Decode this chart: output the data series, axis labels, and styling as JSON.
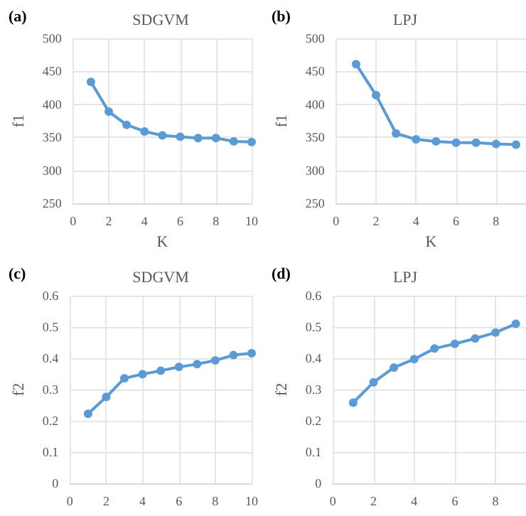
{
  "chart_data": [
    {
      "type": "line",
      "title": "SDGVM",
      "xlabel": "K",
      "ylabel": "f1",
      "annotations": [
        "(a)"
      ],
      "x": [
        1,
        2,
        3,
        4,
        5,
        6,
        7,
        8,
        9,
        10
      ],
      "series": [
        {
          "color": "#5b9bd5",
          "values": [
            434,
            389,
            369,
            359,
            353,
            351,
            349,
            349,
            344,
            343
          ]
        }
      ],
      "xlim": [
        0,
        10
      ],
      "xticks": [
        0,
        2,
        4,
        6,
        8,
        10
      ],
      "ylim": [
        250,
        500
      ],
      "yticks": [
        250,
        300,
        350,
        400,
        450,
        500
      ],
      "grid": true,
      "marker": "circle"
    },
    {
      "type": "line",
      "title": "LPJ",
      "xlabel": "K",
      "ylabel": "f1",
      "annotations": [
        "(b)"
      ],
      "x": [
        1,
        2,
        3,
        4,
        5,
        6,
        7,
        8,
        9
      ],
      "series": [
        {
          "color": "#5b9bd5",
          "values": [
            461,
            414,
            356,
            347,
            344,
            342,
            342,
            340,
            339
          ]
        }
      ],
      "xlim": [
        0,
        9.5
      ],
      "xticks": [
        0,
        2,
        4,
        6,
        8
      ],
      "ylim": [
        250,
        500
      ],
      "yticks": [
        250,
        300,
        350,
        400,
        450,
        500
      ],
      "grid": true,
      "marker": "circle"
    },
    {
      "type": "line",
      "title": "SDGVM",
      "ylabel": "f2",
      "annotations": [
        "(c)"
      ],
      "x": [
        1,
        2,
        3,
        4,
        5,
        6,
        7,
        8,
        9,
        10
      ],
      "series": [
        {
          "color": "#5b9bd5",
          "values": [
            0.222,
            0.276,
            0.336,
            0.349,
            0.36,
            0.372,
            0.381,
            0.393,
            0.41,
            0.416
          ]
        }
      ],
      "xlim": [
        0,
        10
      ],
      "xticks": [
        0,
        2,
        4,
        6,
        8,
        10
      ],
      "ylim": [
        0,
        0.6
      ],
      "yticks": [
        0,
        0.1,
        0.2,
        0.3,
        0.4,
        0.5,
        0.6
      ],
      "grid": true,
      "marker": "circle"
    },
    {
      "type": "line",
      "title": "LPJ",
      "ylabel": "f2",
      "annotations": [
        "(d)"
      ],
      "x": [
        1,
        2,
        3,
        4,
        5,
        6,
        7,
        8,
        9
      ],
      "series": [
        {
          "color": "#5b9bd5",
          "values": [
            0.258,
            0.323,
            0.37,
            0.397,
            0.431,
            0.446,
            0.463,
            0.482,
            0.51
          ]
        }
      ],
      "xlim": [
        0,
        9.5
      ],
      "xticks": [
        0,
        2,
        4,
        6,
        8
      ],
      "ylim": [
        0,
        0.6
      ],
      "yticks": [
        0,
        0.1,
        0.2,
        0.3,
        0.4,
        0.5,
        0.6
      ],
      "grid": true,
      "marker": "circle"
    }
  ]
}
